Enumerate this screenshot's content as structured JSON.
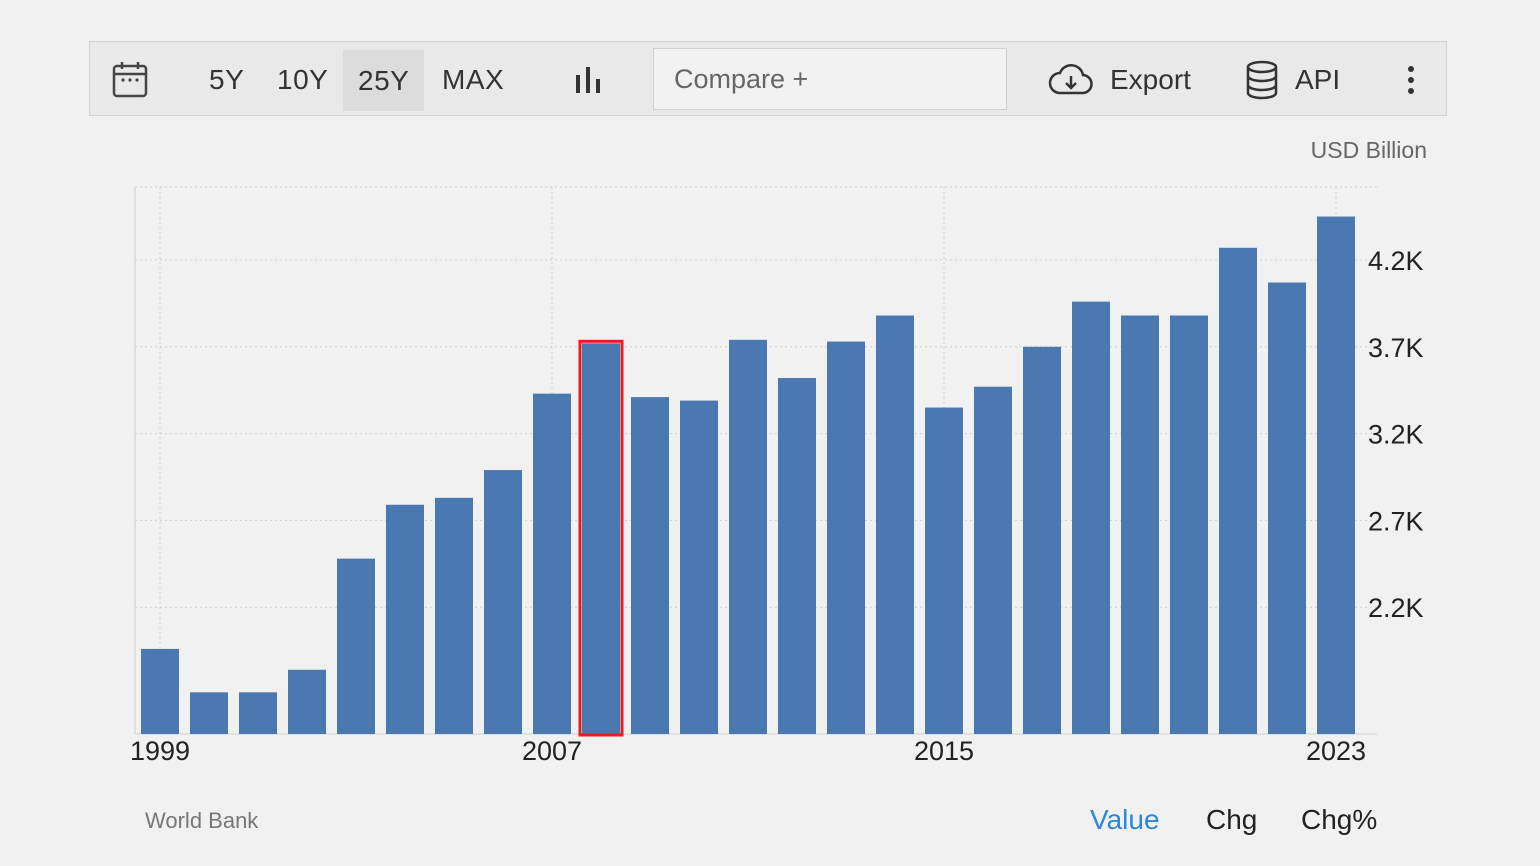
{
  "toolbar": {
    "ranges": [
      "5Y",
      "10Y",
      "25Y",
      "MAX"
    ],
    "active_range": "25Y",
    "compare_placeholder": "Compare +",
    "export_label": "Export",
    "api_label": "API"
  },
  "icons": [
    "calendar-icon",
    "bar-chart-icon",
    "cloud-download-icon",
    "database-icon",
    "more-vertical-icon"
  ],
  "chart": {
    "unit_label": "USD Billion"
  },
  "footer": {
    "source": "World Bank",
    "tabs": [
      "Value",
      "Chg",
      "Chg%"
    ],
    "active_tab": "Value"
  },
  "colors": {
    "bar": "#4a78b1",
    "highlight": "#e02020",
    "active_tab": "#2d87d8",
    "grid": "#cfcfcf"
  },
  "chart_data": {
    "type": "bar",
    "categories": [
      "1999",
      "2000",
      "2001",
      "2002",
      "2003",
      "2004",
      "2005",
      "2006",
      "2007",
      "2008",
      "2009",
      "2010",
      "2011",
      "2012",
      "2013",
      "2014",
      "2015",
      "2016",
      "2017",
      "2018",
      "2019",
      "2020",
      "2021",
      "2022",
      "2023"
    ],
    "values": [
      1960,
      1710,
      1710,
      1840,
      2480,
      2790,
      2830,
      2990,
      3430,
      3720,
      3410,
      3390,
      3740,
      3520,
      3730,
      3880,
      3350,
      3470,
      3700,
      3960,
      3880,
      3880,
      4270,
      4070,
      4450
    ],
    "highlighted_category": "2008",
    "x_tick_labels": [
      "1999",
      "2007",
      "2015",
      "2023"
    ],
    "y_ticks": [
      2200,
      2700,
      3200,
      3700,
      4200
    ],
    "y_tick_labels": [
      "2.2K",
      "2.7K",
      "3.2K",
      "3.7K",
      "4.2K"
    ],
    "ylim": [
      1470,
      4620
    ],
    "unit": "USD Billion",
    "grid": true,
    "y_axis_position": "right"
  }
}
